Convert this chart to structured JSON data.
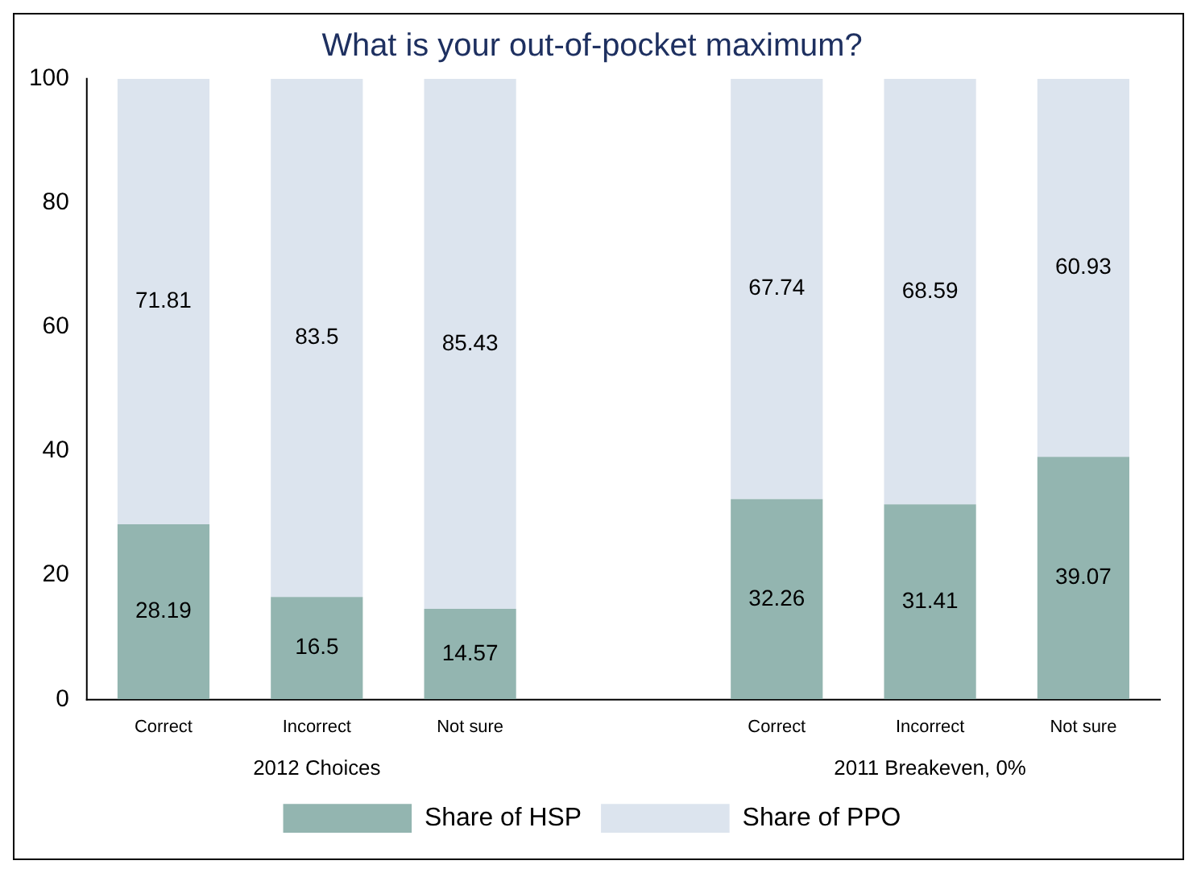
{
  "chart_data": {
    "type": "bar",
    "title": "What is your out-of-pocket maximum?",
    "stacked": true,
    "categories": [
      "Correct",
      "Incorrect",
      "Not sure",
      null,
      "Correct",
      "Incorrect",
      "Not sure"
    ],
    "series": [
      {
        "name": "Share of HSP",
        "color": "#93b5b0",
        "values": [
          28.19,
          16.5,
          14.57,
          null,
          32.26,
          31.41,
          39.07
        ]
      },
      {
        "name": "Share of PPO",
        "color": "#dce4ee",
        "values": [
          71.81,
          83.5,
          85.43,
          null,
          67.74,
          68.59,
          60.93
        ]
      }
    ],
    "annotations": [
      "2012 Choices",
      "2011 Breakeven, 0%"
    ],
    "ylim": [
      0,
      100
    ],
    "yticks": [
      0,
      20,
      40,
      60,
      80,
      100
    ],
    "grid": false,
    "legend": "bottom",
    "data_labels": true
  }
}
